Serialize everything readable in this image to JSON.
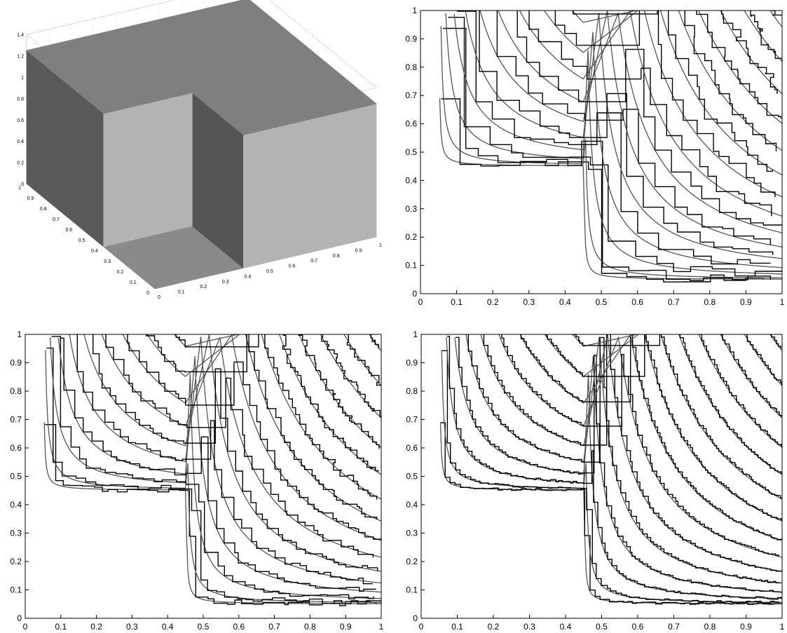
{
  "chart_data": [
    {
      "type": "surface",
      "panel": "top-left",
      "x_ticks": [
        "0",
        "0.1",
        "0.2",
        "0.3",
        "0.4",
        "0.5",
        "0.6",
        "0.7",
        "0.8",
        "0.9",
        "1"
      ],
      "y_ticks": [
        "0",
        "0.1",
        "0.2",
        "0.3",
        "0.4",
        "0.5",
        "0.6",
        "0.7",
        "0.8",
        "0.9",
        "1"
      ],
      "z_ticks": [
        "0",
        "0.2",
        "0.4",
        "0.6",
        "0.8",
        "1",
        "1.2",
        "1.4"
      ],
      "xlim": [
        0,
        1
      ],
      "ylim": [
        0,
        1
      ],
      "zlim": [
        0,
        1.4
      ],
      "surface": {
        "base_height": 0,
        "plateau_height": 1.25,
        "low_region": "x < 0.4 and y < 0.4",
        "step_edges": [
          {
            "axis": "x",
            "value": 0.4
          },
          {
            "axis": "y",
            "value": 0.4
          }
        ]
      },
      "colors": {
        "top_face": "#7f7f7f",
        "left_face": "#5a5a5a",
        "front_face": "#b3b3b3",
        "inner_face": "#555555",
        "floor": "#8a8a8a"
      }
    },
    {
      "type": "line",
      "panel": "top-right",
      "xlim": [
        0,
        1
      ],
      "ylim": [
        0,
        1
      ],
      "x_ticks": [
        "0",
        "0.1",
        "0.2",
        "0.3",
        "0.4",
        "0.5",
        "0.6",
        "0.7",
        "0.8",
        "0.9",
        "1"
      ],
      "y_ticks": [
        "0",
        "0.1",
        "0.2",
        "0.3",
        "0.4",
        "0.5",
        "0.6",
        "0.7",
        "0.8",
        "0.9",
        "1"
      ],
      "level_sets": [
        0.05,
        0.1,
        0.15,
        0.2,
        0.25,
        0.3,
        0.35,
        0.4,
        0.45,
        0.5,
        0.55,
        0.6,
        0.65,
        0.7,
        0.75,
        0.8,
        0.85,
        0.9
      ],
      "corner": [
        0.4,
        0.4
      ],
      "offset": 0.05,
      "exact_color": "#555555",
      "approx_color": "#000000",
      "approx_steps": 16,
      "approx_jitter": 0.03
    },
    {
      "type": "line",
      "panel": "bottom-left",
      "xlim": [
        0,
        1
      ],
      "ylim": [
        0,
        1
      ],
      "x_ticks": [
        "0",
        "0.1",
        "0.2",
        "0.3",
        "0.4",
        "0.5",
        "0.6",
        "0.7",
        "0.8",
        "0.9",
        "1"
      ],
      "y_ticks": [
        "0",
        "0.1",
        "0.2",
        "0.3",
        "0.4",
        "0.5",
        "0.6",
        "0.7",
        "0.8",
        "0.9",
        "1"
      ],
      "level_sets": [
        0.05,
        0.1,
        0.15,
        0.2,
        0.25,
        0.3,
        0.35,
        0.4,
        0.45,
        0.5,
        0.55,
        0.6,
        0.65,
        0.7,
        0.75,
        0.8,
        0.85,
        0.9
      ],
      "corner": [
        0.4,
        0.4
      ],
      "offset": 0.05,
      "exact_color": "#555555",
      "approx_color": "#000000",
      "approx_steps": 34,
      "approx_jitter": 0.018
    },
    {
      "type": "line",
      "panel": "bottom-right",
      "xlim": [
        0,
        1
      ],
      "ylim": [
        0,
        1
      ],
      "x_ticks": [
        "0",
        "0.1",
        "0.2",
        "0.3",
        "0.4",
        "0.5",
        "0.6",
        "0.7",
        "0.8",
        "0.9",
        "1"
      ],
      "y_ticks": [
        "0",
        "0.1",
        "0.2",
        "0.3",
        "0.4",
        "0.5",
        "0.6",
        "0.7",
        "0.8",
        "0.9",
        "1"
      ],
      "level_sets": [
        0.05,
        0.1,
        0.15,
        0.2,
        0.25,
        0.3,
        0.35,
        0.4,
        0.45,
        0.5,
        0.55,
        0.6,
        0.65,
        0.7,
        0.75,
        0.8,
        0.85,
        0.9
      ],
      "corner": [
        0.4,
        0.4
      ],
      "offset": 0.05,
      "exact_color": "#555555",
      "approx_color": "#000000",
      "approx_steps": 70,
      "approx_jitter": 0.007
    }
  ]
}
